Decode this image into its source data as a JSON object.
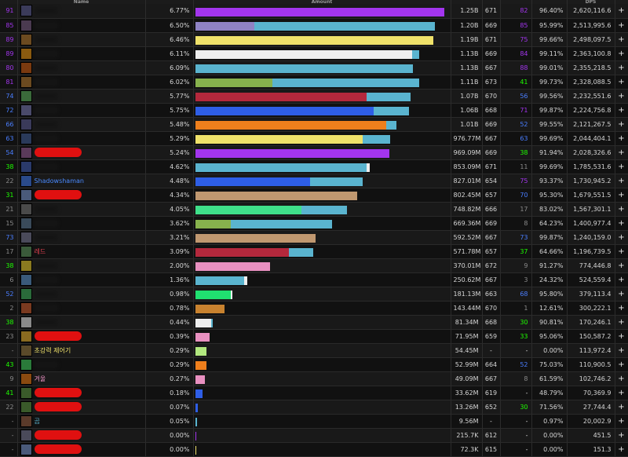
{
  "columns": [
    {
      "label": ""
    },
    {
      "label": "Name"
    },
    {
      "label": ""
    },
    {
      "label": "Amount"
    },
    {
      "label": ""
    },
    {
      "label": ""
    },
    {
      "label": ""
    },
    {
      "label": ""
    },
    {
      "label": "DPS"
    },
    {
      "label": ""
    }
  ],
  "colors": {
    "purple": "#a335ee",
    "lavender": "#8f83c4",
    "teal": "#5ab4cf",
    "yellow": "#f0e26a",
    "white": "#eeeeee",
    "green": "#87b24d",
    "red": "#b4283c",
    "blue": "#2e5ee6",
    "orange": "#ef7f1c",
    "tan": "#c09870",
    "mint": "#3fe08a",
    "pink": "#e890c0",
    "lime": "#b2e87f",
    "brightgreen": "#20e070",
    "darkorange": "#c8822f"
  },
  "rows": [
    {
      "rank": "91",
      "rank_color": "#a335ee",
      "icon": "warrior-class-icon",
      "icon_bg": "#3b3b5a",
      "name": "",
      "redacted": false,
      "name_color": "#eeeeee",
      "pct": "6.77%",
      "amount": "1.25B",
      "c1": "671",
      "c2": "82",
      "c2_color": "#a335ee",
      "uptime": "96.40%",
      "dps": "2,620,116.6",
      "segs": [
        {
          "start": 0,
          "fill": 0.983,
          "color": "#a335ee"
        }
      ]
    },
    {
      "rank": "85",
      "rank_color": "#a335ee",
      "icon": "warrior-class-icon",
      "icon_bg": "#4a3a50",
      "name": "",
      "redacted": false,
      "name_color": "#eeeeee",
      "pct": "6.50%",
      "amount": "1.20B",
      "c1": "669",
      "c2": "85",
      "c2_color": "#a335ee",
      "uptime": "95.99%",
      "dps": "2,513,995.6",
      "segs": [
        {
          "start": 0,
          "fill": 0.235,
          "color": "#8f83c4"
        },
        {
          "start": 0.235,
          "fill": 0.71,
          "color": "#5ab4cf"
        }
      ]
    },
    {
      "rank": "89",
      "rank_color": "#a335ee",
      "icon": "sword-class-icon",
      "icon_bg": "#6b4a20",
      "name": "",
      "redacted": false,
      "name_color": "#eeeeee",
      "pct": "6.46%",
      "amount": "1.19B",
      "c1": "671",
      "c2": "75",
      "c2_color": "#a335ee",
      "uptime": "99.66%",
      "dps": "2,498,097.5",
      "segs": [
        {
          "start": 0,
          "fill": 0.94,
          "color": "#f0e26a"
        }
      ]
    },
    {
      "rank": "89",
      "rank_color": "#a335ee",
      "icon": "skull-class-icon",
      "icon_bg": "#8a5a10",
      "name": "",
      "redacted": false,
      "name_color": "#eeeeee",
      "pct": "6.11%",
      "amount": "1.13B",
      "c1": "669",
      "c2": "84",
      "c2_color": "#a335ee",
      "uptime": "99.11%",
      "dps": "2,363,100.8",
      "segs": [
        {
          "start": 0,
          "fill": 0.855,
          "color": "#eeeeee"
        },
        {
          "start": 0.855,
          "fill": 0.03,
          "color": "#5ab4cf"
        }
      ]
    },
    {
      "rank": "80",
      "rank_color": "#a335ee",
      "icon": "fire-class-icon",
      "icon_bg": "#7a3a10",
      "name": "",
      "redacted": false,
      "name_color": "#eeeeee",
      "pct": "6.09%",
      "amount": "1.13B",
      "c1": "667",
      "c2": "88",
      "c2_color": "#a335ee",
      "uptime": "99.01%",
      "dps": "2,355,218.5",
      "segs": [
        {
          "start": 0,
          "fill": 0.83,
          "color": "#5ab4cf"
        },
        {
          "start": 0.83,
          "fill": 0.03,
          "color": "#5ab4cf"
        }
      ]
    },
    {
      "rank": "81",
      "rank_color": "#a335ee",
      "icon": "claw-class-icon",
      "icon_bg": "#6b4a20",
      "name": "",
      "redacted": false,
      "name_color": "#eeeeee",
      "pct": "6.02%",
      "amount": "1.11B",
      "c1": "673",
      "c2": "41",
      "c2_color": "#1eff00",
      "uptime": "99.73%",
      "dps": "2,328,088.5",
      "segs": [
        {
          "start": 0,
          "fill": 0.305,
          "color": "#87b24d"
        },
        {
          "start": 0.305,
          "fill": 0.58,
          "color": "#5ab4cf"
        }
      ]
    },
    {
      "rank": "74",
      "rank_color": "#4a7eff",
      "icon": "orc-class-icon",
      "icon_bg": "#3a6a3a",
      "name": "",
      "redacted": false,
      "name_color": "#eeeeee",
      "pct": "5.77%",
      "amount": "1.07B",
      "c1": "670",
      "c2": "56",
      "c2_color": "#4a7eff",
      "uptime": "99.56%",
      "dps": "2,232,551.6",
      "segs": [
        {
          "start": 0,
          "fill": 0.675,
          "color": "#b4283c"
        },
        {
          "start": 0.675,
          "fill": 0.175,
          "color": "#5ab4cf"
        }
      ]
    },
    {
      "rank": "72",
      "rank_color": "#4a7eff",
      "icon": "undead-class-icon",
      "icon_bg": "#4a4a6a",
      "name": "",
      "redacted": false,
      "name_color": "#eeeeee",
      "pct": "5.75%",
      "amount": "1.06B",
      "c1": "668",
      "c2": "71",
      "c2_color": "#a335ee",
      "uptime": "99.87%",
      "dps": "2,224,756.8",
      "segs": [
        {
          "start": 0,
          "fill": 0.705,
          "color": "#2e5ee6"
        },
        {
          "start": 0.705,
          "fill": 0.14,
          "color": "#5ab4cf"
        }
      ]
    },
    {
      "rank": "66",
      "rank_color": "#4a7eff",
      "icon": "rogue-class-icon",
      "icon_bg": "#3a3a5a",
      "name": "",
      "redacted": false,
      "name_color": "#eeeeee",
      "pct": "5.48%",
      "amount": "1.01B",
      "c1": "669",
      "c2": "52",
      "c2_color": "#4a7eff",
      "uptime": "99.55%",
      "dps": "2,121,267.5",
      "segs": [
        {
          "start": 0,
          "fill": 0.755,
          "color": "#ef7f1c"
        },
        {
          "start": 0.755,
          "fill": 0.04,
          "color": "#5ab4cf"
        }
      ]
    },
    {
      "rank": "63",
      "rank_color": "#4a7eff",
      "icon": "shaman-class-icon",
      "icon_bg": "#2a3a5a",
      "name": "",
      "redacted": false,
      "name_color": "#eeeeee",
      "pct": "5.29%",
      "amount": "976.77M",
      "c1": "667",
      "c2": "63",
      "c2_color": "#4a7eff",
      "uptime": "99.69%",
      "dps": "2,044,404.1",
      "segs": [
        {
          "start": 0,
          "fill": 0.66,
          "color": "#f0e26a"
        },
        {
          "start": 0.66,
          "fill": 0.11,
          "color": "#5ab4cf"
        }
      ]
    },
    {
      "rank": "54",
      "rank_color": "#4a7eff",
      "icon": "warlock-class-icon",
      "icon_bg": "#5a3a5a",
      "name": "",
      "redacted": true,
      "name_color": "#eeeeee",
      "pct": "5.24%",
      "amount": "969.09M",
      "c1": "669",
      "c2": "38",
      "c2_color": "#1eff00",
      "uptime": "91.94%",
      "dps": "2,028,326.6",
      "segs": [
        {
          "start": 0,
          "fill": 0.765,
          "color": "#a335ee"
        }
      ]
    },
    {
      "rank": "38",
      "rank_color": "#1eff00",
      "icon": "spear-class-icon",
      "icon_bg": "#2a3a6a",
      "name": "",
      "redacted": false,
      "name_color": "#eeeeee",
      "pct": "4.62%",
      "amount": "853.09M",
      "c1": "671",
      "c2": "11",
      "c2_color": "#8a8a8a",
      "uptime": "99.69%",
      "dps": "1,785,531.6",
      "segs": [
        {
          "start": 0,
          "fill": 0.675,
          "color": "#5ab4cf"
        },
        {
          "start": 0.675,
          "fill": 0.015,
          "color": "#eeeeee"
        }
      ]
    },
    {
      "rank": "22",
      "rank_color": "#8a8a8a",
      "icon": "lightning-class-icon",
      "icon_bg": "#2a4a8a",
      "name": "Shadowshaman",
      "redacted": false,
      "name_color": "#4a8aff",
      "pct": "4.48%",
      "amount": "827.01M",
      "c1": "654",
      "c2": "75",
      "c2_color": "#a335ee",
      "uptime": "93.37%",
      "dps": "1,730,945.2",
      "segs": [
        {
          "start": 0,
          "fill": 0.455,
          "color": "#2e5ee6"
        },
        {
          "start": 0.455,
          "fill": 0.205,
          "color": "#5ab4cf"
        }
      ]
    },
    {
      "rank": "31",
      "rank_color": "#1eff00",
      "icon": "frost-class-icon",
      "icon_bg": "#4a5a7a",
      "name": "",
      "redacted": true,
      "name_color": "#eeeeee",
      "pct": "4.34%",
      "amount": "802.45M",
      "c1": "657",
      "c2": "70",
      "c2_color": "#4a7eff",
      "uptime": "95.30%",
      "dps": "1,679,551.5",
      "segs": [
        {
          "start": 0,
          "fill": 0.64,
          "color": "#c09870"
        }
      ]
    },
    {
      "rank": "21",
      "rank_color": "#8a8a8a",
      "icon": "hunter-class-icon",
      "icon_bg": "#4a4a4a",
      "name": "",
      "redacted": false,
      "name_color": "#eeeeee",
      "pct": "4.05%",
      "amount": "748.82M",
      "c1": "666",
      "c2": "17",
      "c2_color": "#8a8a8a",
      "uptime": "83.02%",
      "dps": "1,567,301.1",
      "segs": [
        {
          "start": 0,
          "fill": 0.42,
          "color": "#3fe08a"
        },
        {
          "start": 0.42,
          "fill": 0.18,
          "color": "#5ab4cf"
        }
      ]
    },
    {
      "rank": "15",
      "rank_color": "#8a8a8a",
      "icon": "mail-class-icon",
      "icon_bg": "#3a4a5a",
      "name": "",
      "redacted": false,
      "name_color": "#eeeeee",
      "pct": "3.62%",
      "amount": "669.36M",
      "c1": "669",
      "c2": "8",
      "c2_color": "#8a8a8a",
      "uptime": "64.23%",
      "dps": "1,400,977.4",
      "segs": [
        {
          "start": 0,
          "fill": 0.14,
          "color": "#87b24d"
        },
        {
          "start": 0.14,
          "fill": 0.4,
          "color": "#5ab4cf"
        }
      ]
    },
    {
      "rank": "73",
      "rank_color": "#4a7eff",
      "icon": "knight-class-icon",
      "icon_bg": "#4a4a5a",
      "name": "",
      "redacted": false,
      "name_color": "#eeeeee",
      "pct": "3.21%",
      "amount": "592.52M",
      "c1": "667",
      "c2": "73",
      "c2_color": "#4a7eff",
      "uptime": "99.87%",
      "dps": "1,240,159.0",
      "segs": [
        {
          "start": 0,
          "fill": 0.475,
          "color": "#c09870"
        }
      ]
    },
    {
      "rank": "17",
      "rank_color": "#8a8a8a",
      "icon": "skull-green-class-icon",
      "icon_bg": "#3a5a3a",
      "name": "레드",
      "redacted": false,
      "name_color": "#e04050",
      "pct": "3.09%",
      "amount": "571.78M",
      "c1": "657",
      "c2": "37",
      "c2_color": "#1eff00",
      "uptime": "64.66%",
      "dps": "1,196,739.5",
      "segs": [
        {
          "start": 0,
          "fill": 0.37,
          "color": "#b4283c"
        },
        {
          "start": 0.37,
          "fill": 0.095,
          "color": "#5ab4cf"
        }
      ]
    },
    {
      "rank": "38",
      "rank_color": "#1eff00",
      "icon": "paladin-class-icon",
      "icon_bg": "#8a7a20",
      "name": "",
      "redacted": false,
      "name_color": "#eeeeee",
      "pct": "2.00%",
      "amount": "370.01M",
      "c1": "672",
      "c2": "9",
      "c2_color": "#8a8a8a",
      "uptime": "91.27%",
      "dps": "774,446.8",
      "segs": [
        {
          "start": 0,
          "fill": 0.295,
          "color": "#e890c0"
        }
      ]
    },
    {
      "rank": "6",
      "rank_color": "#8a8a8a",
      "icon": "mage-class-icon",
      "icon_bg": "#3a5a7a",
      "name": "",
      "redacted": false,
      "name_color": "#eeeeee",
      "pct": "1.36%",
      "amount": "250.62M",
      "c1": "667",
      "c2": "3",
      "c2_color": "#8a8a8a",
      "uptime": "24.32%",
      "dps": "524,559.4",
      "segs": [
        {
          "start": 0,
          "fill": 0.195,
          "color": "#5ab4cf"
        },
        {
          "start": 0.195,
          "fill": 0.01,
          "color": "#eeeeee"
        }
      ]
    },
    {
      "rank": "52",
      "rank_color": "#4a7eff",
      "icon": "druid-class-icon",
      "icon_bg": "#2a6a3a",
      "name": "",
      "redacted": false,
      "name_color": "#eeeeee",
      "pct": "0.98%",
      "amount": "181.13M",
      "c1": "663",
      "c2": "68",
      "c2_color": "#4a7eff",
      "uptime": "95.80%",
      "dps": "379,113.4",
      "segs": [
        {
          "start": 0,
          "fill": 0.14,
          "color": "#20e070"
        },
        {
          "start": 0.14,
          "fill": 0.008,
          "color": "#eeeeee"
        }
      ]
    },
    {
      "rank": "2",
      "rank_color": "#8a8a8a",
      "icon": "beast-class-icon",
      "icon_bg": "#7a3a20",
      "name": "",
      "redacted": false,
      "name_color": "#eeeeee",
      "pct": "0.78%",
      "amount": "143.44M",
      "c1": "670",
      "c2": "1",
      "c2_color": "#8a8a8a",
      "uptime": "12.61%",
      "dps": "300,222.1",
      "segs": [
        {
          "start": 0,
          "fill": 0.115,
          "color": "#c8822f"
        }
      ]
    },
    {
      "rank": "38",
      "rank_color": "#1eff00",
      "icon": "priest-class-icon",
      "icon_bg": "#8a8a8a",
      "name": "",
      "redacted": false,
      "name_color": "#eeeeee",
      "pct": "0.44%",
      "amount": "81.34M",
      "c1": "668",
      "c2": "30",
      "c2_color": "#1eff00",
      "uptime": "90.81%",
      "dps": "170,246.1",
      "segs": [
        {
          "start": 0,
          "fill": 0.062,
          "color": "#eeeeee"
        },
        {
          "start": 0.062,
          "fill": 0.008,
          "color": "#5ab4cf"
        }
      ]
    },
    {
      "rank": "23",
      "rank_color": "#8a8a8a",
      "icon": "sun-class-icon",
      "icon_bg": "#8a6a20",
      "name": "",
      "redacted": true,
      "name_color": "#eeeeee",
      "pct": "0.39%",
      "amount": "71.95M",
      "c1": "659",
      "c2": "33",
      "c2_color": "#1eff00",
      "uptime": "95.06%",
      "dps": "150,587.2",
      "segs": [
        {
          "start": 0,
          "fill": 0.058,
          "color": "#e890c0"
        }
      ]
    },
    {
      "rank": "-",
      "rank_color": "#8a8a8a",
      "icon": "staff-class-icon",
      "icon_bg": "#5a4a2a",
      "name": "초강력 제어기",
      "redacted": false,
      "name_color": "#f0e26a",
      "pct": "0.29%",
      "amount": "54.45M",
      "c1": "-",
      "c2": "-",
      "c2_color": "#d6d6d6",
      "uptime": "0.00%",
      "dps": "113,972.4",
      "segs": [
        {
          "start": 0,
          "fill": 0.045,
          "color": "#b2e87f"
        }
      ]
    },
    {
      "rank": "43",
      "rank_color": "#1eff00",
      "icon": "leaf-class-icon",
      "icon_bg": "#2a7a3a",
      "name": "",
      "redacted": false,
      "name_color": "#eeeeee",
      "pct": "0.29%",
      "amount": "52.99M",
      "c1": "664",
      "c2": "52",
      "c2_color": "#4a7eff",
      "uptime": "75.03%",
      "dps": "110,900.5",
      "segs": [
        {
          "start": 0,
          "fill": 0.044,
          "color": "#ef7f1c"
        }
      ]
    },
    {
      "rank": "9",
      "rank_color": "#8a8a8a",
      "icon": "fire-orange-class-icon",
      "icon_bg": "#8a4a10",
      "name": "겨울",
      "redacted": false,
      "name_color": "#e890c0",
      "pct": "0.27%",
      "amount": "49.09M",
      "c1": "667",
      "c2": "8",
      "c2_color": "#8a8a8a",
      "uptime": "61.59%",
      "dps": "102,746.2",
      "segs": [
        {
          "start": 0,
          "fill": 0.04,
          "color": "#e890c0"
        }
      ]
    },
    {
      "rank": "41",
      "rank_color": "#1eff00",
      "icon": "claws-class-icon",
      "icon_bg": "#3a5a2a",
      "name": "",
      "redacted": true,
      "name_color": "#eeeeee",
      "pct": "0.18%",
      "amount": "33.62M",
      "c1": "619",
      "c2": "-",
      "c2_color": "#d6d6d6",
      "uptime": "48.79%",
      "dps": "70,369.9",
      "segs": [
        {
          "start": 0,
          "fill": 0.028,
          "color": "#2e5ee6"
        }
      ]
    },
    {
      "rank": "22",
      "rank_color": "#8a8a8a",
      "icon": "claws-class-icon",
      "icon_bg": "#3a5a2a",
      "name": "",
      "redacted": true,
      "name_color": "#eeeeee",
      "pct": "0.07%",
      "amount": "13.26M",
      "c1": "652",
      "c2": "30",
      "c2_color": "#1eff00",
      "uptime": "71.56%",
      "dps": "27,744.4",
      "segs": [
        {
          "start": 0,
          "fill": 0.012,
          "color": "#2e5ee6"
        }
      ]
    },
    {
      "rank": "-",
      "rank_color": "#8a8a8a",
      "icon": "bear-class-icon",
      "icon_bg": "#5a3a2a",
      "name": "곰",
      "redacted": false,
      "name_color": "#5ab4cf",
      "pct": "0.05%",
      "amount": "9.56M",
      "c1": "-",
      "c2": "-",
      "c2_color": "#d6d6d6",
      "uptime": "0.97%",
      "dps": "20,002.9",
      "segs": [
        {
          "start": 0,
          "fill": 0.008,
          "color": "#5ab4cf"
        }
      ]
    },
    {
      "rank": "-",
      "rank_color": "#8a8a8a",
      "icon": "warrior-class-icon",
      "icon_bg": "#4a4a5a",
      "name": "",
      "redacted": true,
      "name_color": "#eeeeee",
      "pct": "0.00%",
      "amount": "215.7K",
      "c1": "612",
      "c2": "-",
      "c2_color": "#d6d6d6",
      "uptime": "0.00%",
      "dps": "451.5",
      "segs": [
        {
          "start": 0,
          "fill": 0.003,
          "color": "#a335ee"
        }
      ]
    },
    {
      "rank": "-",
      "rank_color": "#8a8a8a",
      "icon": "frost-class-icon",
      "icon_bg": "#4a5a7a",
      "name": "",
      "redacted": true,
      "name_color": "#eeeeee",
      "pct": "0.00%",
      "amount": "72.3K",
      "c1": "615",
      "c2": "-",
      "c2_color": "#d6d6d6",
      "uptime": "0.00%",
      "dps": "151.3",
      "segs": [
        {
          "start": 0,
          "fill": 0.002,
          "color": "#f0e26a"
        }
      ]
    }
  ],
  "expand_label": "+"
}
